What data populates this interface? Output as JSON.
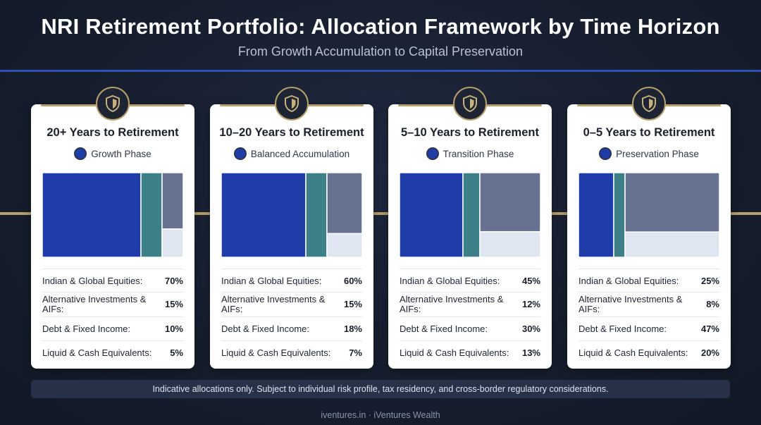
{
  "header": {
    "title": "NRI Retirement Portfolio: Allocation Framework by Time Horizon",
    "subtitle": "From Growth Accumulation to Capital Preservation"
  },
  "colors": {
    "equities": "#1f3da8",
    "alternatives": "#3e8088",
    "debt": "#66728f",
    "liquid": "#dfe5f1",
    "gold_accent": "#b8a06a",
    "background": "#161d2c"
  },
  "icons": {
    "card_badge": "shield-icon",
    "phase_marker": "dot-icon"
  },
  "chart_data": {
    "type": "treemap",
    "categories": [
      "Indian & Global Equities:",
      "Alternative Investments & AIFs:",
      "Debt & Fixed Income:",
      "Liquid & Cash Equivalents:"
    ],
    "series": [
      {
        "name": "20+ Years to Retirement",
        "values": [
          70,
          15,
          10,
          5
        ]
      },
      {
        "name": "10–20 Years to Retirement",
        "values": [
          60,
          15,
          18,
          7
        ]
      },
      {
        "name": "5–10 Years to Retirement",
        "values": [
          45,
          12,
          30,
          13
        ]
      },
      {
        "name": "0–5 Years to Retirement",
        "values": [
          25,
          8,
          47,
          20
        ]
      }
    ]
  },
  "cards": [
    {
      "title": "20+ Years to Retirement",
      "phase": "Growth Phase",
      "rows": [
        {
          "label": "Indian & Global Equities:",
          "value": "70%"
        },
        {
          "label": "Alternative Investments & AIFs:",
          "value": "15%"
        },
        {
          "label": "Debt & Fixed Income:",
          "value": "10%"
        },
        {
          "label": "Liquid & Cash Equivalents:",
          "value": "5%"
        }
      ]
    },
    {
      "title": "10–20 Years to Retirement",
      "phase": "Balanced Accumulation",
      "rows": [
        {
          "label": "Indian & Global Equities:",
          "value": "60%"
        },
        {
          "label": "Alternative Investments & AIFs:",
          "value": "15%"
        },
        {
          "label": "Debt & Fixed Income:",
          "value": "18%"
        },
        {
          "label": "Liquid & Cash Equivalents:",
          "value": "7%"
        }
      ]
    },
    {
      "title": "5–10 Years to Retirement",
      "phase": "Transition Phase",
      "rows": [
        {
          "label": "Indian & Global Equities:",
          "value": "45%"
        },
        {
          "label": "Alternative Investments & AIFs:",
          "value": "12%"
        },
        {
          "label": "Debt & Fixed Income:",
          "value": "30%"
        },
        {
          "label": "Liquid & Cash Equivalents:",
          "value": "13%"
        }
      ]
    },
    {
      "title": "0–5 Years to Retirement",
      "phase": "Preservation Phase",
      "rows": [
        {
          "label": "Indian & Global Equities:",
          "value": "25%"
        },
        {
          "label": "Alternative Investments & AIFs:",
          "value": "8%"
        },
        {
          "label": "Debt & Fixed Income:",
          "value": "47%"
        },
        {
          "label": "Liquid & Cash Equivalents:",
          "value": "20%"
        }
      ]
    }
  ],
  "footnote": "Indicative allocations only. Subject to individual risk profile, tax residency, and cross-border regulatory considerations.",
  "footer": "iventures.in · iVentures Wealth"
}
